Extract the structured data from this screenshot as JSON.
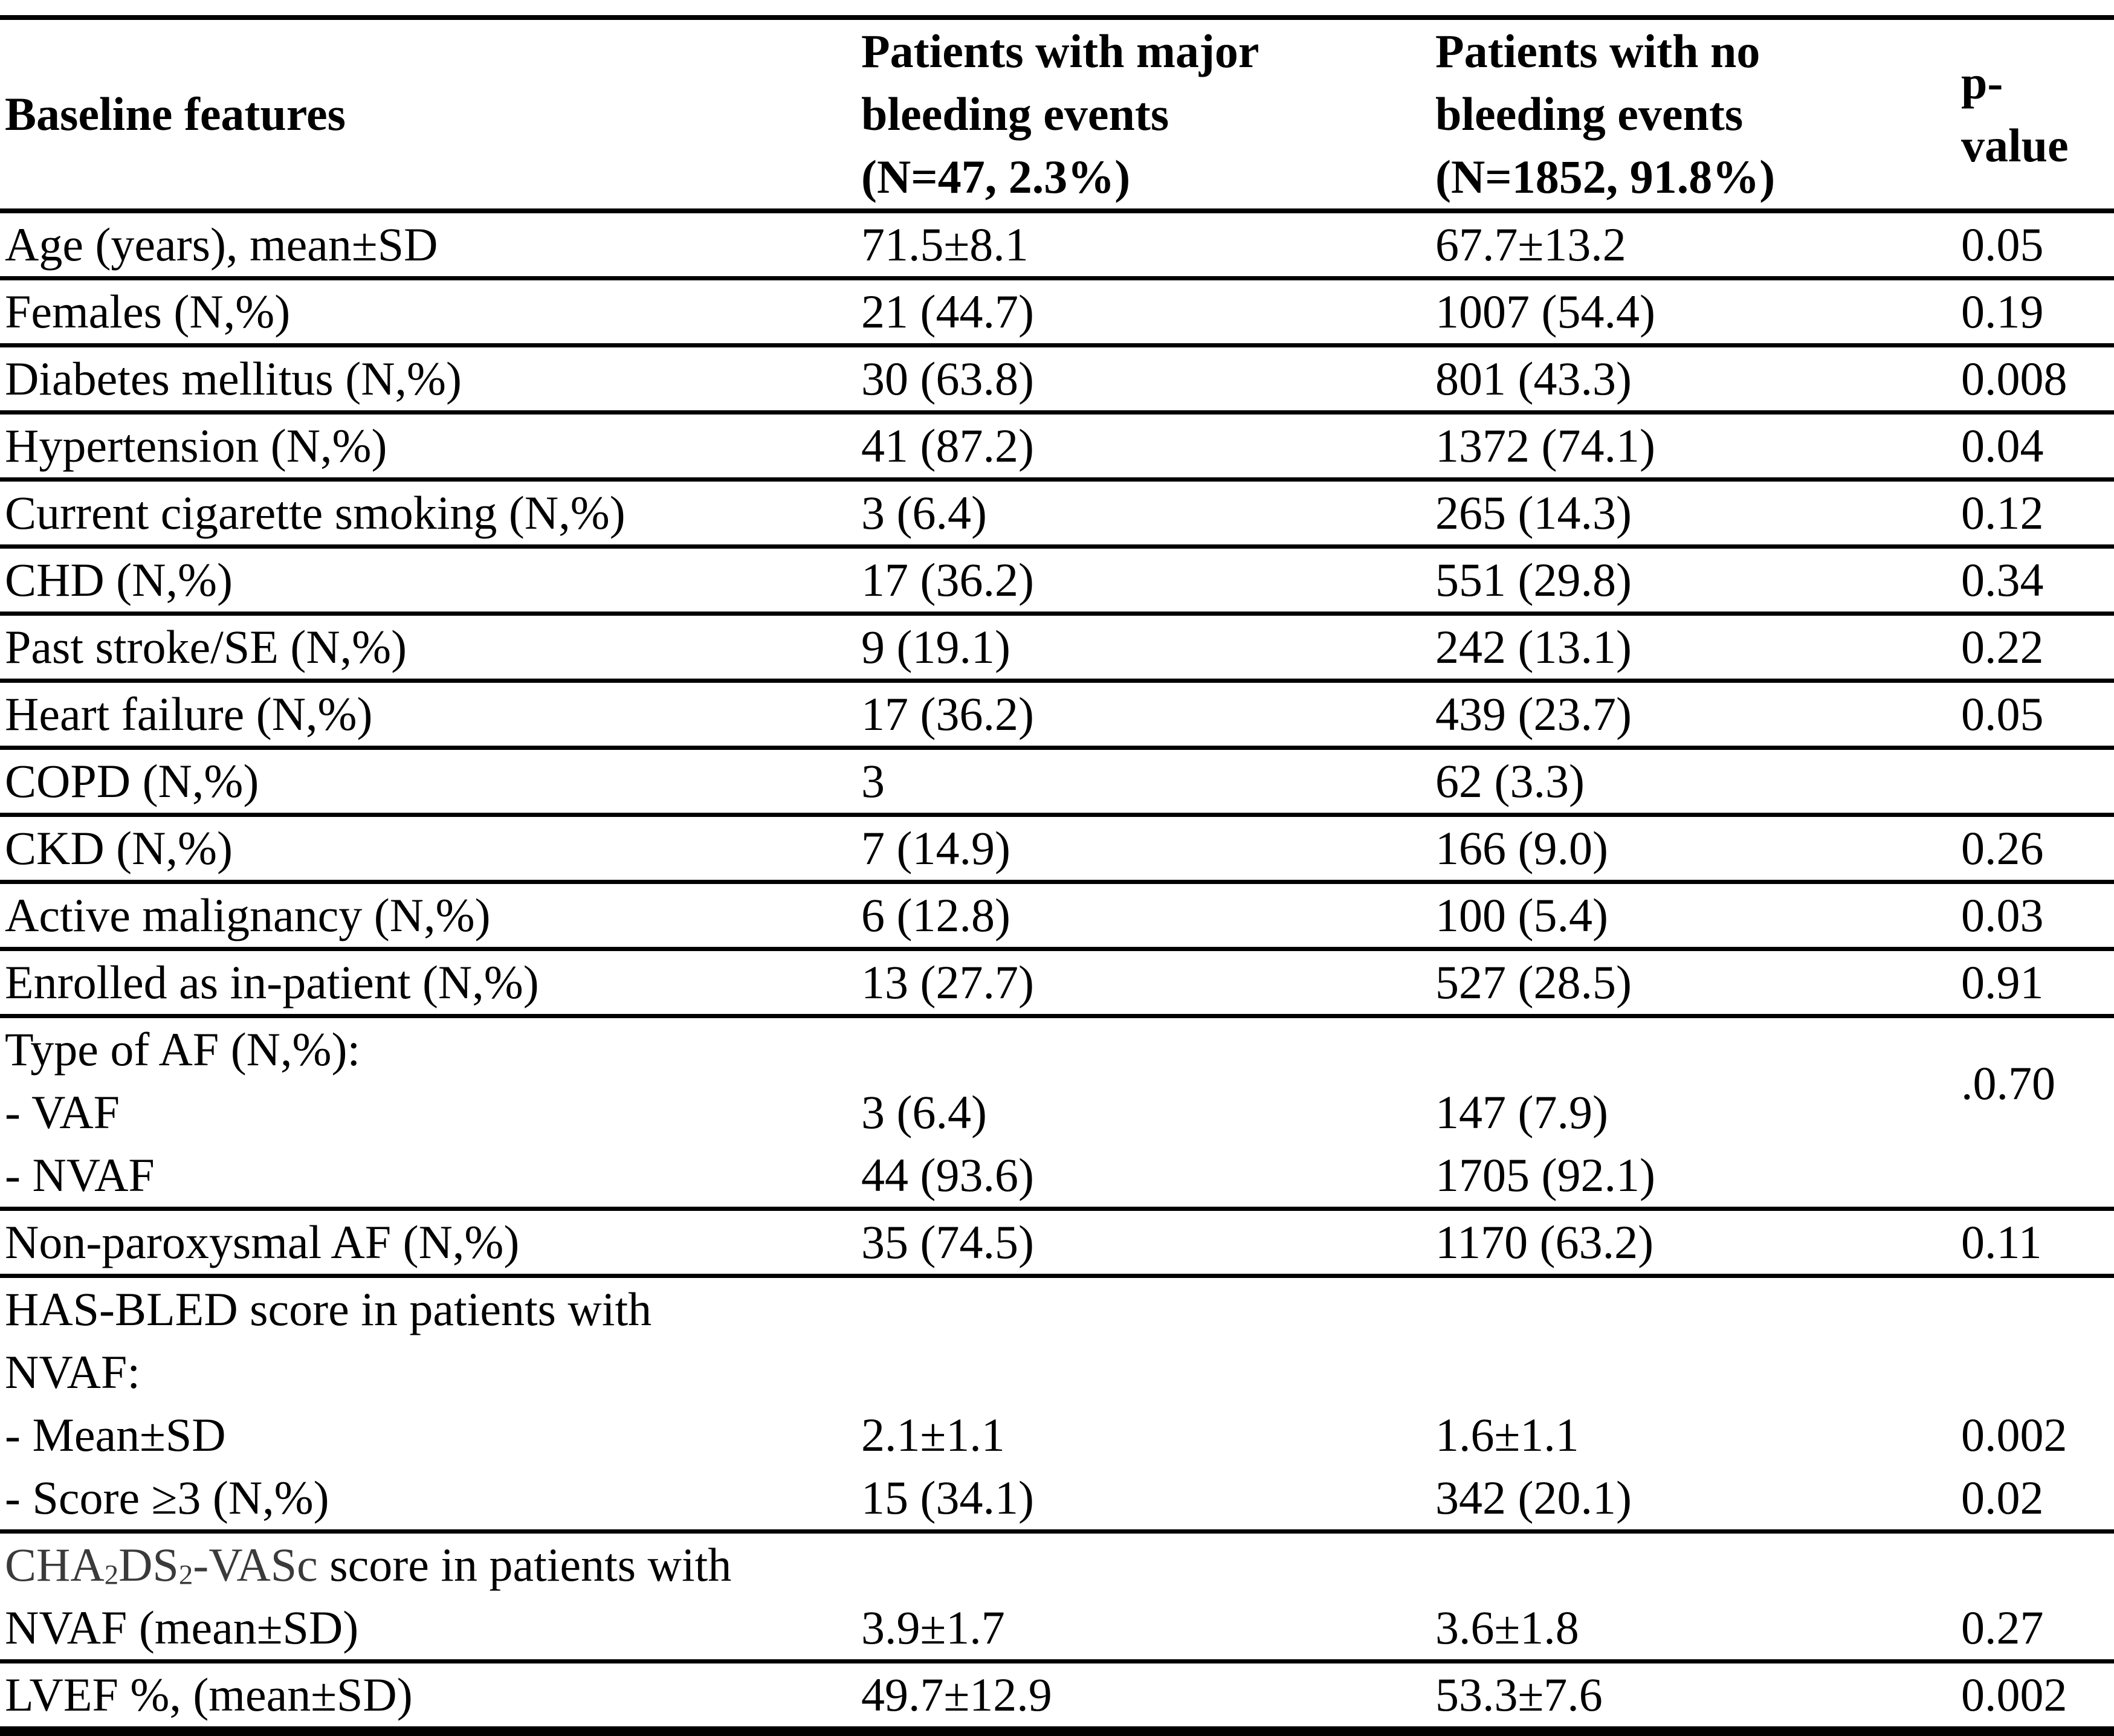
{
  "colors": {
    "text": "#000000",
    "background": "#ffffff",
    "rule": "#000000",
    "chadsvasc_label_gray": "#3a3a3a"
  },
  "header": {
    "col1": "Baseline features",
    "col2_lines": [
      "Patients with major",
      "bleeding events",
      "(N=47, 2.3%)"
    ],
    "col3_lines": [
      "Patients with no",
      "bleeding events",
      "(N=1852, 91.8%)"
    ],
    "col4_lines": [
      "p-",
      "value"
    ]
  },
  "rows": {
    "age": {
      "label": "Age (years), mean±SD",
      "major": "71.5±8.1",
      "none": "67.7±13.2",
      "p": "0.05"
    },
    "females": {
      "label": "Females (N,%)",
      "major": "21 (44.7)",
      "none": "1007 (54.4)",
      "p": "0.19"
    },
    "diabetes": {
      "label": "Diabetes mellitus (N,%)",
      "major": "30 (63.8)",
      "none": "801 (43.3)",
      "p": "0.008"
    },
    "hypertension": {
      "label": "Hypertension (N,%)",
      "major": "41 (87.2)",
      "none": "1372 (74.1)",
      "p": "0.04"
    },
    "smoking": {
      "label": "Current cigarette smoking (N,%)",
      "major": "3 (6.4)",
      "none": "265 (14.3)",
      "p": "0.12"
    },
    "chd": {
      "label": "CHD (N,%)",
      "major": "17 (36.2)",
      "none": "551 (29.8)",
      "p": "0.34"
    },
    "stroke": {
      "label": "Past stroke/SE (N,%)",
      "major": "9 (19.1)",
      "none": "242 (13.1)",
      "p": "0.22"
    },
    "heart_failure": {
      "label": "Heart failure (N,%)",
      "major": "17 (36.2)",
      "none": "439 (23.7)",
      "p": "0.05"
    },
    "copd": {
      "label": "COPD (N,%)",
      "major": "3",
      "none": "62 (3.3)",
      "p": ""
    },
    "ckd": {
      "label": "CKD (N,%)",
      "major": "7 (14.9)",
      "none": "166 (9.0)",
      "p": "0.26"
    },
    "malignancy": {
      "label": "Active malignancy (N,%)",
      "major": "6 (12.8)",
      "none": "100 (5.4)",
      "p": "0.03"
    },
    "inpatient": {
      "label": "Enrolled as in-patient (N,%)",
      "major": "13 (27.7)",
      "none": "527 (28.5)",
      "p": "0.91"
    },
    "af_type": {
      "labels": [
        "Type of AF (N,%):",
        "- VAF",
        "- NVAF"
      ],
      "major": [
        "",
        "3 (6.4)",
        "44 (93.6)"
      ],
      "none": [
        "",
        "147 (7.9)",
        "1705 (92.1)"
      ],
      "p": ".0.70"
    },
    "non_paroxysmal": {
      "label": "Non-paroxysmal AF (N,%)",
      "major": "35 (74.5)",
      "none": "1170 (63.2)",
      "p": "0.11"
    },
    "hasbled": {
      "labels": [
        "HAS-BLED score in patients with",
        "NVAF:",
        "- Mean±SD",
        "- Score ≥3 (N,%)"
      ],
      "major": [
        "",
        "",
        "2.1±1.1",
        "15 (34.1)"
      ],
      "none": [
        "",
        "",
        "1.6±1.1",
        "342 (20.1)"
      ],
      "p": [
        "",
        "",
        "0.002",
        "0.02"
      ]
    },
    "chadsvasc": {
      "title": {
        "p1": "CHA",
        "s1": "2",
        "p2": "DS",
        "s2": "2",
        "p3": "-VASc",
        "rest": " score in patients with"
      },
      "label2": "NVAF (mean±SD)",
      "major": [
        "",
        "3.9±1.7"
      ],
      "none": [
        "",
        "3.6±1.8"
      ],
      "p": [
        "",
        "0.27"
      ]
    },
    "lvef": {
      "label": "LVEF %, (mean±SD)",
      "major": "49.7±12.9",
      "none": "53.3±7.6",
      "p": "0.002"
    }
  }
}
